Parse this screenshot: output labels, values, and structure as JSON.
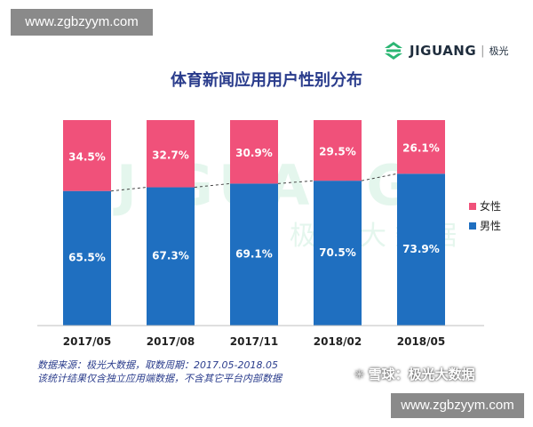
{
  "watermark_top": "www.zgbzyym.com",
  "watermark_bottom": "www.zgbzyym.com",
  "brand": {
    "name": "JIGUANG",
    "separator": "|",
    "cn": "极光"
  },
  "background_watermark": {
    "latin": "JIGUANG",
    "cn": "极 光 大 数 据"
  },
  "source_lines": [
    "数据来源：极光大数据，取数周期：2017.05-2018.05",
    "该统计结果仅含独立应用端数据，不含其它平台内部数据"
  ],
  "xueqiu_watermark": "雪球：极光大数据",
  "colors": {
    "female": "#f0517a",
    "male": "#1f6fc0",
    "title": "#2a3c8c"
  },
  "icons": [
    "jiguang-logo-icon",
    "snowball-icon"
  ],
  "chart_data": {
    "type": "bar",
    "stacked": true,
    "title": "体育新闻应用用户性别分布",
    "categories": [
      "2017/05",
      "2017/08",
      "2017/11",
      "2018/02",
      "2018/05"
    ],
    "series": [
      {
        "name": "男性",
        "values": [
          65.5,
          67.3,
          69.1,
          70.5,
          73.9
        ],
        "labels": [
          "65.5%",
          "67.3%",
          "69.1%",
          "70.5%",
          "73.9%"
        ],
        "color": "#1f6fc0"
      },
      {
        "name": "女性",
        "values": [
          34.5,
          32.7,
          30.9,
          29.5,
          26.1
        ],
        "labels": [
          "34.5%",
          "32.7%",
          "30.9%",
          "29.5%",
          "26.1%"
        ],
        "color": "#f0517a"
      }
    ],
    "ylim": [
      0,
      100
    ],
    "grid": false,
    "legend": "right",
    "legend_order": [
      "女性",
      "男性"
    ],
    "trend_line": "dashed line connecting tops of 男性 segments"
  }
}
